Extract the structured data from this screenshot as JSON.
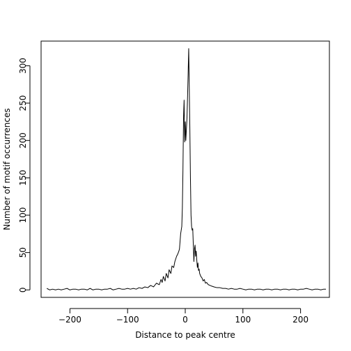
{
  "chart_data": {
    "type": "line",
    "title": "",
    "xlabel": "Distance to peak centre",
    "ylabel": "Number of motif occurrences",
    "xlim": [
      -250,
      250
    ],
    "ylim": [
      -10,
      333
    ],
    "xticks": [
      -200,
      -100,
      0,
      100,
      200
    ],
    "xtick_labels": [
      "−200",
      "−100",
      "0",
      "100",
      "200"
    ],
    "yticks": [
      0,
      50,
      100,
      150,
      200,
      250,
      300
    ],
    "ytick_labels": [
      "0",
      "50",
      "100",
      "150",
      "200",
      "250",
      "300"
    ],
    "grid": false,
    "legend": "none",
    "series": [
      {
        "color": "#000000",
        "x": [
          -240,
          -235,
          -230,
          -225,
          -220,
          -215,
          -210,
          -205,
          -200,
          -195,
          -190,
          -185,
          -180,
          -175,
          -170,
          -165,
          -160,
          -155,
          -150,
          -145,
          -140,
          -135,
          -130,
          -125,
          -120,
          -115,
          -110,
          -105,
          -100,
          -95,
          -90,
          -85,
          -80,
          -75,
          -70,
          -65,
          -60,
          -55,
          -50,
          -45,
          -42,
          -40,
          -38,
          -35,
          -33,
          -30,
          -28,
          -25,
          -23,
          -20,
          -18,
          -15,
          -13,
          -11,
          -10,
          -8,
          -6,
          -5,
          -4,
          -3,
          -2,
          -1,
          0,
          1,
          2,
          3,
          4,
          5,
          6,
          7,
          8,
          9,
          10,
          11,
          12,
          13,
          14,
          15,
          16,
          17,
          18,
          19,
          20,
          21,
          22,
          23,
          24,
          25,
          27,
          29,
          31,
          33,
          35,
          37,
          40,
          43,
          46,
          50,
          55,
          60,
          65,
          70,
          75,
          80,
          85,
          90,
          95,
          100,
          105,
          110,
          115,
          120,
          125,
          130,
          135,
          140,
          145,
          150,
          155,
          160,
          165,
          170,
          175,
          180,
          185,
          190,
          195,
          200,
          205,
          210,
          215,
          220,
          225,
          230,
          235,
          240,
          244
        ],
        "y": [
          2,
          0,
          1,
          0,
          1,
          0,
          1,
          2,
          0,
          1,
          1,
          0,
          1,
          1,
          0,
          2,
          0,
          1,
          1,
          0,
          1,
          1,
          2,
          0,
          1,
          2,
          1,
          1,
          2,
          1,
          2,
          1,
          3,
          2,
          4,
          3,
          6,
          4,
          9,
          7,
          14,
          10,
          18,
          12,
          22,
          16,
          27,
          22,
          32,
          30,
          38,
          45,
          48,
          52,
          55,
          75,
          85,
          110,
          160,
          230,
          254,
          198,
          225,
          200,
          215,
          230,
          258,
          290,
          323,
          270,
          215,
          150,
          100,
          85,
          80,
          82,
          60,
          38,
          55,
          60,
          45,
          52,
          40,
          30,
          36,
          26,
          28,
          22,
          18,
          16,
          12,
          14,
          9,
          10,
          7,
          6,
          5,
          4,
          3,
          3,
          2,
          2,
          1,
          2,
          1,
          1,
          2,
          1,
          0,
          1,
          1,
          0,
          1,
          1,
          0,
          1,
          1,
          0,
          1,
          1,
          0,
          1,
          1,
          0,
          1,
          1,
          0,
          1,
          1,
          2,
          1,
          0,
          1,
          1,
          0,
          1,
          1
        ]
      }
    ]
  }
}
